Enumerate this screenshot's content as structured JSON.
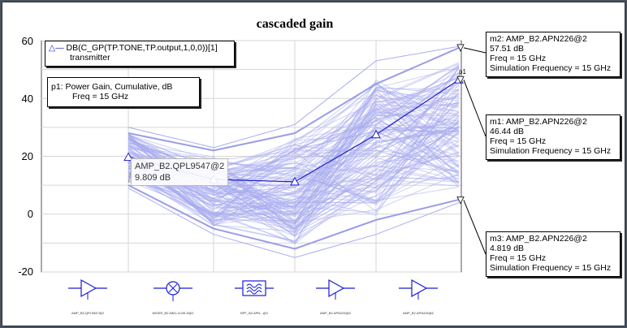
{
  "chart_data": {
    "type": "line",
    "title": "cascaded gain",
    "xlabel": "",
    "ylabel": "",
    "ylim": [
      -20,
      60
    ],
    "yticks": [
      "60",
      "40",
      "20",
      "0",
      "-20"
    ],
    "grid": true,
    "x": [
      1,
      2,
      3,
      4,
      5
    ],
    "x_icons": [
      "amplifier-icon",
      "mixer-icon",
      "filter-icon",
      "amplifier-icon",
      "amplifier-icon"
    ],
    "stage_labels": [
      "AMP_B3.QPL9547@2",
      "MIXER_B2.MM1-1120LS@2",
      "BPF_B2.APN...@2",
      "AMP_B2.APN226@2",
      "AMP_B2.APN226@2"
    ],
    "series": [
      {
        "values": [
          19.7,
          12.0,
          11.2,
          27.5,
          46.44
        ],
        "color": "#2020c8",
        "marker": "triangle"
      }
    ],
    "envelope": {
      "color": "#a8abee",
      "upper": [
        30,
        23,
        31,
        53,
        58
      ],
      "lower": [
        9,
        -7,
        -15,
        -7,
        4
      ],
      "max_cluster": [
        28,
        22,
        28,
        45,
        57.5
      ],
      "min_cluster": [
        10,
        -5,
        -12,
        -2,
        5
      ]
    }
  },
  "legend": {
    "entry": "DB(C_GP(TP.TONE,TP.output,1,0,0))[1]",
    "sub": "transmitter"
  },
  "p1": {
    "line1": "p1: Power Gain, Cumulative, dB",
    "line2": "Freq = 15 GHz"
  },
  "annotation": {
    "line1": "AMP_B2.QPL9547@2",
    "line2": "9.809 dB"
  },
  "markers": {
    "m2": {
      "id": "m2",
      "l1": "m2: AMP_B2.APN226@2",
      "l2": "57.51 dB",
      "l3": "Freq = 15 GHz",
      "l4": "Simulation Frequency = 15 GHz"
    },
    "m1": {
      "id": "m1",
      "l1": "m1: AMP_B2.APN226@2",
      "l2": "46.44 dB",
      "l3": "Freq = 15 GHz",
      "l4": "Simulation Frequency = 15 GHz"
    },
    "m3": {
      "id": "m3",
      "l1": "m3: AMP_B2.APN226@2",
      "l2": "4.819 dB",
      "l3": "Freq = 15 GHz",
      "l4": "Simulation Frequency = 15 GHz"
    }
  },
  "marker_values": {
    "m2": 57.51,
    "m1": 46.44,
    "m3": 4.819
  },
  "corner_marker": "p1"
}
